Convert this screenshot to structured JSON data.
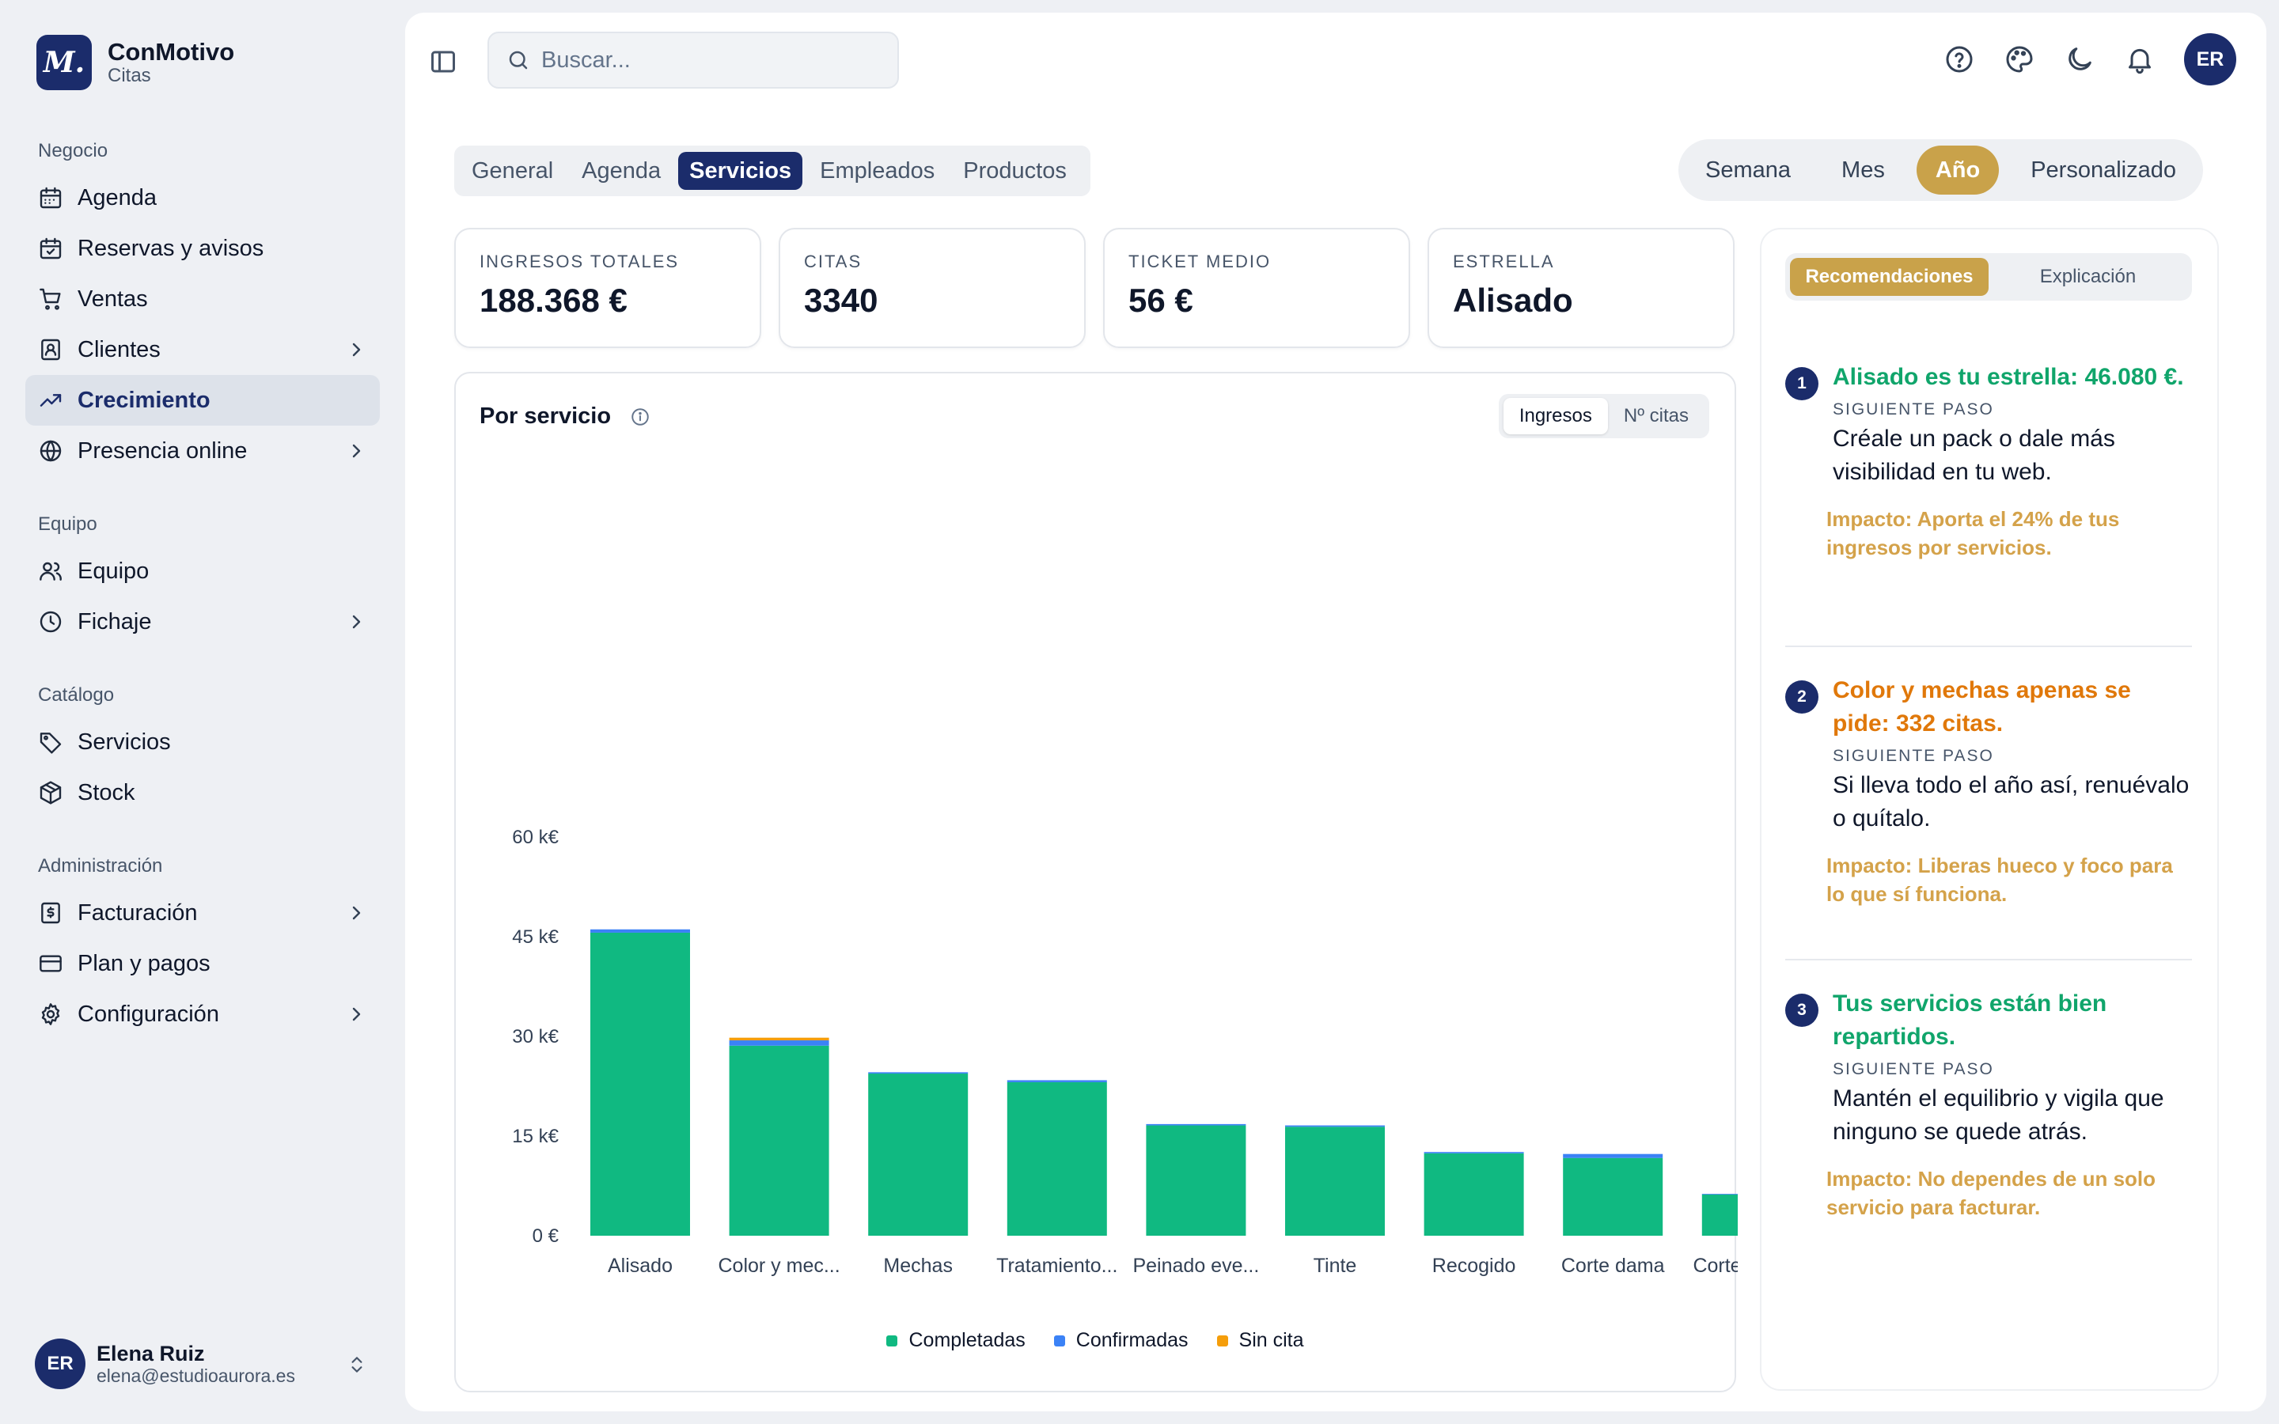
{
  "brand": {
    "logo": "M.",
    "name": "ConMotivo",
    "subtitle": "Citas"
  },
  "sidebar": {
    "sections": [
      {
        "heading": "Negocio",
        "items": [
          {
            "label": "Agenda",
            "icon": "calendar-icon",
            "chevron": false,
            "active": false
          },
          {
            "label": "Reservas y avisos",
            "icon": "calendar-check-icon",
            "chevron": false,
            "active": false
          },
          {
            "label": "Ventas",
            "icon": "cart-icon",
            "chevron": false,
            "active": false
          },
          {
            "label": "Clientes",
            "icon": "contact-icon",
            "chevron": true,
            "active": false
          },
          {
            "label": "Crecimiento",
            "icon": "trending-up-icon",
            "chevron": false,
            "active": true
          },
          {
            "label": "Presencia online",
            "icon": "globe-icon",
            "chevron": true,
            "active": false
          }
        ]
      },
      {
        "heading": "Equipo",
        "items": [
          {
            "label": "Equipo",
            "icon": "users-icon",
            "chevron": false,
            "active": false
          },
          {
            "label": "Fichaje",
            "icon": "clock-icon",
            "chevron": true,
            "active": false
          }
        ]
      },
      {
        "heading": "Catálogo",
        "items": [
          {
            "label": "Servicios",
            "icon": "tag-icon",
            "chevron": false,
            "active": false
          },
          {
            "label": "Stock",
            "icon": "box-icon",
            "chevron": false,
            "active": false
          }
        ]
      },
      {
        "heading": "Administración",
        "items": [
          {
            "label": "Facturación",
            "icon": "receipt-icon",
            "chevron": true,
            "active": false
          },
          {
            "label": "Plan y pagos",
            "icon": "credit-card-icon",
            "chevron": false,
            "active": false
          },
          {
            "label": "Configuración",
            "icon": "gear-icon",
            "chevron": true,
            "active": false
          }
        ]
      }
    ]
  },
  "user": {
    "initials": "ER",
    "name": "Elena Ruiz",
    "email": "elena@estudioaurora.es"
  },
  "search": {
    "placeholder": "Buscar..."
  },
  "header": {
    "avatar_initials": "ER"
  },
  "tabs": [
    "General",
    "Agenda",
    "Servicios",
    "Empleados",
    "Productos"
  ],
  "active_tab": "Servicios",
  "periods": [
    "Semana",
    "Mes",
    "Año",
    "Personalizado"
  ],
  "active_period": "Año",
  "kpis": [
    {
      "label": "INGRESOS TOTALES",
      "value": "188.368 €"
    },
    {
      "label": "CITAS",
      "value": "3340"
    },
    {
      "label": "TICKET MEDIO",
      "value": "56 €"
    },
    {
      "label": "ESTRELLA",
      "value": "Alisado"
    }
  ],
  "chart_card": {
    "title": "Por servicio",
    "metric_tabs": [
      "Ingresos",
      "Nº citas"
    ],
    "active_metric": "Ingresos"
  },
  "chart_data": {
    "type": "bar",
    "stacked": true,
    "categories": [
      "Alisado",
      "Color y mec...",
      "Mechas",
      "Tratamiento...",
      "Peinado eve...",
      "Tinte",
      "Recogido",
      "Corte dama",
      "Corte cabal..."
    ],
    "series": [
      {
        "name": "Completadas",
        "color": "#10b981",
        "values": [
          45600,
          28600,
          24400,
          23100,
          16600,
          16400,
          12400,
          11700,
          6200
        ]
      },
      {
        "name": "Confirmadas",
        "color": "#3b82f6",
        "values": [
          500,
          800,
          200,
          300,
          200,
          200,
          200,
          600,
          100
        ]
      },
      {
        "name": "Sin cita",
        "color": "#f59e0b",
        "values": [
          0,
          400,
          0,
          0,
          0,
          0,
          0,
          0,
          0
        ]
      }
    ],
    "yticks": [
      "0 €",
      "15 k€",
      "30 k€",
      "45 k€",
      "60 k€"
    ],
    "ylim": [
      0,
      60000
    ],
    "grid": false,
    "legend": "bottom"
  },
  "reco_panel": {
    "tabs": [
      "Recomendaciones",
      "Explicación"
    ],
    "active_tab": "Recomendaciones",
    "items": [
      {
        "num": "1",
        "title": "Alisado es tu estrella: 46.080 €.",
        "title_color": "#10a56b",
        "step_label": "SIGUIENTE PASO",
        "step": "Créale un pack o dale más visibilidad en tu web.",
        "impact": "Impacto: Aporta el 24% de tus ingresos por servicios."
      },
      {
        "num": "2",
        "title": "Color y mechas apenas se pide: 332 citas.",
        "title_color": "#e0780a",
        "step_label": "SIGUIENTE PASO",
        "step": "Si lleva todo el año así, renuévalo o quítalo.",
        "impact": "Impacto: Liberas hueco y foco para lo que sí funciona."
      },
      {
        "num": "3",
        "title": "Tus servicios están bien repartidos.",
        "title_color": "#10a56b",
        "step_label": "SIGUIENTE PASO",
        "step": "Mantén el equilibrio y vigila que ninguno se quede atrás.",
        "impact": "Impacto: No dependes de un solo servicio para facturar."
      }
    ]
  }
}
